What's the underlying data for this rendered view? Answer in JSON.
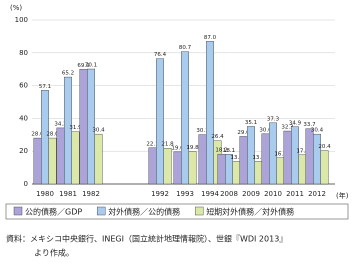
{
  "chart_data": {
    "type": "bar",
    "y_unit": "(%)",
    "x_unit": "(年)",
    "categories": [
      "1980",
      "1981",
      "1982",
      "1992",
      "1993",
      "1994",
      "2008",
      "2009",
      "2010",
      "2011",
      "2012"
    ],
    "series": [
      {
        "name": "公的債務／GDP",
        "color": "#aca3d8",
        "values": [
          28.0,
          34.2,
          69.9,
          22.1,
          19.6,
          30.1,
          18.2,
          29.0,
          30.6,
          32.3,
          33.7
        ],
        "value_labels": [
          "28.0",
          "34.2",
          "69.9",
          "22.1",
          "19.6",
          "30.1",
          "18.2",
          "29.0",
          "30.6",
          "32.3",
          "33.7"
        ]
      },
      {
        "name": "対外債務／公的債務",
        "color": "#a9cbee",
        "values": [
          57.1,
          65.2,
          70.1,
          76.4,
          80.7,
          87.0,
          18.1,
          35.1,
          37.3,
          34.9,
          30.4
        ],
        "value_labels": [
          "57.1",
          "65.2",
          "70.1",
          "76.4",
          "80.7",
          "87.0",
          "18.1",
          "35.1",
          "37.3",
          "34.9",
          "30.4"
        ]
      },
      {
        "name": "短期対外債務／対外債務",
        "color": "#dbe8a8",
        "values": [
          28.0,
          31.9,
          30.4,
          21.8,
          19.8,
          26.4,
          13.8,
          13.8,
          16.0,
          17.8,
          20.4
        ],
        "value_labels": [
          "28.0",
          "31.9",
          "30.4",
          "21.8",
          "19.8",
          "26.4",
          "13.8",
          "13.8",
          "16.0",
          "17.8",
          "20.4"
        ]
      }
    ],
    "ylim": [
      0,
      100
    ],
    "yticks": [
      0,
      20,
      40,
      60,
      80,
      100
    ],
    "grid": true,
    "source": [
      "資料：メキシコ中央銀行、INEGI（国立統計地理情報院）、世銀『WDI 2013』",
      "より作成。"
    ]
  }
}
